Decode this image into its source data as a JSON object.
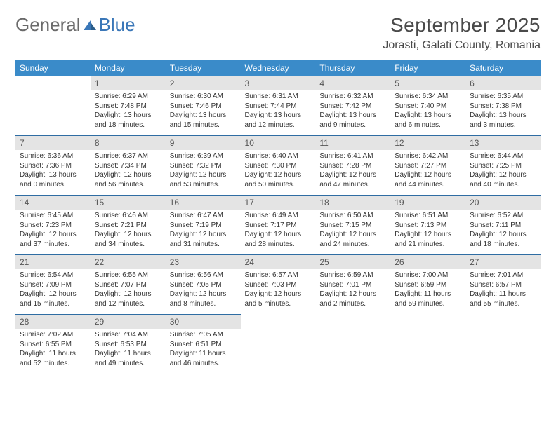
{
  "logo": {
    "part1": "General",
    "part2": "Blue"
  },
  "title": {
    "month": "September 2025",
    "location": "Jorasti, Galati County, Romania"
  },
  "colors": {
    "header_bg": "#3a8bc9",
    "header_text": "#ffffff",
    "daynum_bg": "#e4e4e4",
    "daynum_border": "#2f6da3",
    "body_text": "#333333",
    "title_text": "#4a4a4a",
    "logo_gray": "#6a6a6a",
    "logo_blue": "#3a77b8"
  },
  "day_headers": [
    "Sunday",
    "Monday",
    "Tuesday",
    "Wednesday",
    "Thursday",
    "Friday",
    "Saturday"
  ],
  "weeks": [
    [
      {
        "n": "",
        "sr": "",
        "ss": "",
        "dl": ""
      },
      {
        "n": "1",
        "sr": "Sunrise: 6:29 AM",
        "ss": "Sunset: 7:48 PM",
        "dl": "Daylight: 13 hours and 18 minutes."
      },
      {
        "n": "2",
        "sr": "Sunrise: 6:30 AM",
        "ss": "Sunset: 7:46 PM",
        "dl": "Daylight: 13 hours and 15 minutes."
      },
      {
        "n": "3",
        "sr": "Sunrise: 6:31 AM",
        "ss": "Sunset: 7:44 PM",
        "dl": "Daylight: 13 hours and 12 minutes."
      },
      {
        "n": "4",
        "sr": "Sunrise: 6:32 AM",
        "ss": "Sunset: 7:42 PM",
        "dl": "Daylight: 13 hours and 9 minutes."
      },
      {
        "n": "5",
        "sr": "Sunrise: 6:34 AM",
        "ss": "Sunset: 7:40 PM",
        "dl": "Daylight: 13 hours and 6 minutes."
      },
      {
        "n": "6",
        "sr": "Sunrise: 6:35 AM",
        "ss": "Sunset: 7:38 PM",
        "dl": "Daylight: 13 hours and 3 minutes."
      }
    ],
    [
      {
        "n": "7",
        "sr": "Sunrise: 6:36 AM",
        "ss": "Sunset: 7:36 PM",
        "dl": "Daylight: 13 hours and 0 minutes."
      },
      {
        "n": "8",
        "sr": "Sunrise: 6:37 AM",
        "ss": "Sunset: 7:34 PM",
        "dl": "Daylight: 12 hours and 56 minutes."
      },
      {
        "n": "9",
        "sr": "Sunrise: 6:39 AM",
        "ss": "Sunset: 7:32 PM",
        "dl": "Daylight: 12 hours and 53 minutes."
      },
      {
        "n": "10",
        "sr": "Sunrise: 6:40 AM",
        "ss": "Sunset: 7:30 PM",
        "dl": "Daylight: 12 hours and 50 minutes."
      },
      {
        "n": "11",
        "sr": "Sunrise: 6:41 AM",
        "ss": "Sunset: 7:28 PM",
        "dl": "Daylight: 12 hours and 47 minutes."
      },
      {
        "n": "12",
        "sr": "Sunrise: 6:42 AM",
        "ss": "Sunset: 7:27 PM",
        "dl": "Daylight: 12 hours and 44 minutes."
      },
      {
        "n": "13",
        "sr": "Sunrise: 6:44 AM",
        "ss": "Sunset: 7:25 PM",
        "dl": "Daylight: 12 hours and 40 minutes."
      }
    ],
    [
      {
        "n": "14",
        "sr": "Sunrise: 6:45 AM",
        "ss": "Sunset: 7:23 PM",
        "dl": "Daylight: 12 hours and 37 minutes."
      },
      {
        "n": "15",
        "sr": "Sunrise: 6:46 AM",
        "ss": "Sunset: 7:21 PM",
        "dl": "Daylight: 12 hours and 34 minutes."
      },
      {
        "n": "16",
        "sr": "Sunrise: 6:47 AM",
        "ss": "Sunset: 7:19 PM",
        "dl": "Daylight: 12 hours and 31 minutes."
      },
      {
        "n": "17",
        "sr": "Sunrise: 6:49 AM",
        "ss": "Sunset: 7:17 PM",
        "dl": "Daylight: 12 hours and 28 minutes."
      },
      {
        "n": "18",
        "sr": "Sunrise: 6:50 AM",
        "ss": "Sunset: 7:15 PM",
        "dl": "Daylight: 12 hours and 24 minutes."
      },
      {
        "n": "19",
        "sr": "Sunrise: 6:51 AM",
        "ss": "Sunset: 7:13 PM",
        "dl": "Daylight: 12 hours and 21 minutes."
      },
      {
        "n": "20",
        "sr": "Sunrise: 6:52 AM",
        "ss": "Sunset: 7:11 PM",
        "dl": "Daylight: 12 hours and 18 minutes."
      }
    ],
    [
      {
        "n": "21",
        "sr": "Sunrise: 6:54 AM",
        "ss": "Sunset: 7:09 PM",
        "dl": "Daylight: 12 hours and 15 minutes."
      },
      {
        "n": "22",
        "sr": "Sunrise: 6:55 AM",
        "ss": "Sunset: 7:07 PM",
        "dl": "Daylight: 12 hours and 12 minutes."
      },
      {
        "n": "23",
        "sr": "Sunrise: 6:56 AM",
        "ss": "Sunset: 7:05 PM",
        "dl": "Daylight: 12 hours and 8 minutes."
      },
      {
        "n": "24",
        "sr": "Sunrise: 6:57 AM",
        "ss": "Sunset: 7:03 PM",
        "dl": "Daylight: 12 hours and 5 minutes."
      },
      {
        "n": "25",
        "sr": "Sunrise: 6:59 AM",
        "ss": "Sunset: 7:01 PM",
        "dl": "Daylight: 12 hours and 2 minutes."
      },
      {
        "n": "26",
        "sr": "Sunrise: 7:00 AM",
        "ss": "Sunset: 6:59 PM",
        "dl": "Daylight: 11 hours and 59 minutes."
      },
      {
        "n": "27",
        "sr": "Sunrise: 7:01 AM",
        "ss": "Sunset: 6:57 PM",
        "dl": "Daylight: 11 hours and 55 minutes."
      }
    ],
    [
      {
        "n": "28",
        "sr": "Sunrise: 7:02 AM",
        "ss": "Sunset: 6:55 PM",
        "dl": "Daylight: 11 hours and 52 minutes."
      },
      {
        "n": "29",
        "sr": "Sunrise: 7:04 AM",
        "ss": "Sunset: 6:53 PM",
        "dl": "Daylight: 11 hours and 49 minutes."
      },
      {
        "n": "30",
        "sr": "Sunrise: 7:05 AM",
        "ss": "Sunset: 6:51 PM",
        "dl": "Daylight: 11 hours and 46 minutes."
      },
      {
        "n": "",
        "sr": "",
        "ss": "",
        "dl": ""
      },
      {
        "n": "",
        "sr": "",
        "ss": "",
        "dl": ""
      },
      {
        "n": "",
        "sr": "",
        "ss": "",
        "dl": ""
      },
      {
        "n": "",
        "sr": "",
        "ss": "",
        "dl": ""
      }
    ]
  ]
}
